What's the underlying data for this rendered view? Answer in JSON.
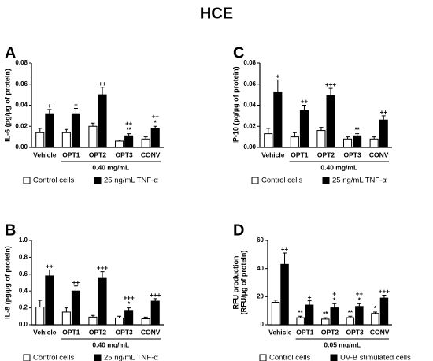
{
  "title": "HCE",
  "chart_data": [
    {
      "type": "bar",
      "panel": "A",
      "ylabel": [
        "IL-6 (pg/µg of protein)"
      ],
      "categories": [
        "Vehicle",
        "OPT1",
        "OPT2",
        "OPT3",
        "CONV"
      ],
      "group_label": "0.40 mg/mL",
      "ylim": [
        0,
        0.08
      ],
      "yticks": [
        {
          "value": 0,
          "label": "0.00"
        },
        0.02,
        0.04,
        0.06,
        0.08
      ],
      "series": [
        {
          "name": "Control cells",
          "color": "#ffffff",
          "values": [
            0.014,
            0.014,
            0.02,
            0.006,
            0.008
          ],
          "errors": [
            0.004,
            0.003,
            0.003,
            0.001,
            0.002
          ],
          "annotations": [
            null,
            null,
            null,
            null,
            null
          ]
        },
        {
          "name": "25 ng/mL TNF-α",
          "color": "#000000",
          "values": [
            0.032,
            0.032,
            0.05,
            0.011,
            0.018
          ],
          "errors": [
            0.004,
            0.005,
            0.007,
            0.002,
            0.002
          ],
          "annotations": [
            [
              "+"
            ],
            [
              "+"
            ],
            [
              "++"
            ],
            [
              "++",
              "**"
            ],
            [
              "++",
              "*"
            ]
          ]
        }
      ]
    },
    {
      "type": "bar",
      "panel": "C",
      "ylabel": [
        "IP-10 (pg/µg of protein)"
      ],
      "categories": [
        "Vehicle",
        "OPT1",
        "OPT2",
        "OPT3",
        "CONV"
      ],
      "group_label": "0.40 mg/mL",
      "ylim": [
        0,
        0.08
      ],
      "yticks": [
        {
          "value": 0,
          "label": "0.00"
        },
        0.02,
        0.04,
        0.06,
        0.08
      ],
      "series": [
        {
          "name": "Control cells",
          "color": "#ffffff",
          "values": [
            0.013,
            0.01,
            0.016,
            0.008,
            0.008
          ],
          "errors": [
            0.005,
            0.004,
            0.003,
            0.002,
            0.002
          ],
          "annotations": [
            null,
            null,
            null,
            null,
            null
          ]
        },
        {
          "name": "25 ng/mL TNF-α",
          "color": "#000000",
          "values": [
            0.052,
            0.035,
            0.049,
            0.011,
            0.026
          ],
          "errors": [
            0.012,
            0.005,
            0.007,
            0.002,
            0.004
          ],
          "annotations": [
            [
              "+"
            ],
            [
              "++"
            ],
            [
              "+++"
            ],
            [
              "**"
            ],
            [
              "++"
            ]
          ]
        }
      ]
    },
    {
      "type": "bar",
      "panel": "B",
      "ylabel": [
        "IL-8 (pg/µg of protein)"
      ],
      "categories": [
        "Vehicle",
        "OPT1",
        "OPT2",
        "OPT3",
        "CONV"
      ],
      "group_label": "0.40 mg/mL",
      "ylim": [
        0,
        1.0
      ],
      "yticks": [
        {
          "value": 0,
          "label": "0.0"
        },
        0.2,
        0.4,
        0.6,
        0.8,
        {
          "value": 1.0,
          "label": "1.0"
        }
      ],
      "series": [
        {
          "name": "Control cells",
          "color": "#ffffff",
          "values": [
            0.21,
            0.15,
            0.09,
            0.08,
            0.07
          ],
          "errors": [
            0.08,
            0.05,
            0.02,
            0.02,
            0.02
          ],
          "annotations": [
            null,
            null,
            null,
            null,
            null
          ]
        },
        {
          "name": "25 ng/mL TNF-α",
          "color": "#000000",
          "values": [
            0.58,
            0.4,
            0.55,
            0.17,
            0.28
          ],
          "errors": [
            0.07,
            0.06,
            0.08,
            0.03,
            0.03
          ],
          "annotations": [
            [
              "++"
            ],
            [
              "++"
            ],
            [
              "+++"
            ],
            [
              "+++",
              "*"
            ],
            [
              "+++"
            ]
          ]
        }
      ]
    },
    {
      "type": "bar",
      "panel": "D",
      "ylabel": [
        "RFU production",
        "(RFU/µg of protein)"
      ],
      "categories": [
        "Vehicle",
        "OPT1",
        "OPT2",
        "OPT3",
        "CONV"
      ],
      "group_label": "0.05 mg/mL",
      "ylim": [
        0,
        60
      ],
      "yticks": [
        0,
        20,
        40,
        60
      ],
      "series": [
        {
          "name": "Control cells",
          "color": "#ffffff",
          "values": [
            16,
            5,
            4,
            5,
            8
          ],
          "errors": [
            1.5,
            1,
            1,
            1,
            1
          ],
          "annotations": [
            null,
            [
              "**"
            ],
            [
              "**"
            ],
            [
              "**"
            ],
            [
              "*"
            ]
          ]
        },
        {
          "name": "UV-B stimulated cells",
          "color": "#000000",
          "values": [
            43,
            14,
            12,
            13,
            19
          ],
          "errors": [
            8,
            3,
            3,
            2,
            2
          ],
          "annotations": [
            [
              "++"
            ],
            [
              "+"
            ],
            [
              "+",
              "*"
            ],
            [
              "++",
              "*"
            ],
            [
              "+++"
            ]
          ]
        }
      ]
    }
  ]
}
